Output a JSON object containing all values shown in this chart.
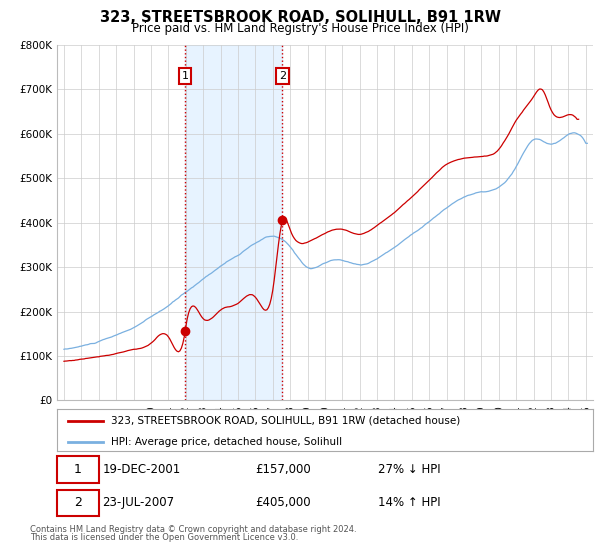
{
  "title": "323, STREETSBROOK ROAD, SOLIHULL, B91 1RW",
  "subtitle": "Price paid vs. HM Land Registry's House Price Index (HPI)",
  "ylim": [
    0,
    800000
  ],
  "yticks": [
    0,
    100000,
    200000,
    300000,
    400000,
    500000,
    600000,
    700000,
    800000
  ],
  "ytick_labels": [
    "£0",
    "£100K",
    "£200K",
    "£300K",
    "£400K",
    "£500K",
    "£600K",
    "£700K",
    "£800K"
  ],
  "xmin": 1994.6,
  "xmax": 2025.4,
  "sale1_x": 2001.97,
  "sale1_y": 157000,
  "sale2_x": 2007.55,
  "sale2_y": 405000,
  "sale1_label": "1",
  "sale2_label": "2",
  "legend_line1": "323, STREETSBROOK ROAD, SOLIHULL, B91 1RW (detached house)",
  "legend_line2": "HPI: Average price, detached house, Solihull",
  "hpi_color": "#7ab0e0",
  "price_color": "#cc0000",
  "shade_color": "#ddeeff",
  "vline_color": "#cc0000",
  "grid_color": "#cccccc",
  "background_color": "#ffffff",
  "footnote1": "Contains HM Land Registry data © Crown copyright and database right 2024.",
  "footnote2": "This data is licensed under the Open Government Licence v3.0."
}
